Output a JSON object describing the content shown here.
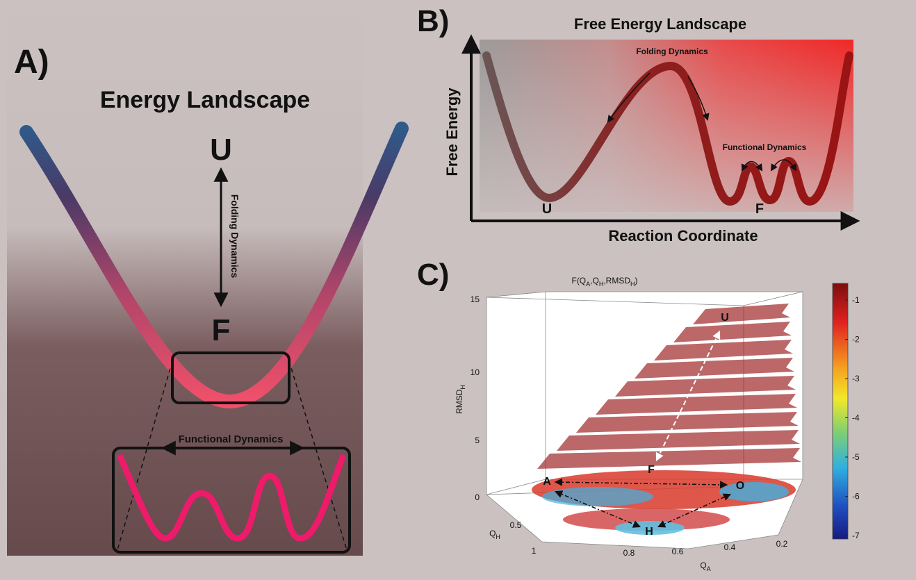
{
  "panel_a": {
    "label": "A)",
    "title": "Energy Landscape",
    "unfolded": "U",
    "folded": "F",
    "arrow_label": "Folding Dynamics",
    "inset_label": "Functional Dynamics"
  },
  "panel_b": {
    "label": "B)",
    "title": "Free Energy Landscape",
    "y_axis": "Free Energy",
    "x_axis": "Reaction Coordinate",
    "folding_label": "Folding Dynamics",
    "functional_label": "Functional Dynamics",
    "unfolded": "U",
    "folded": "F"
  },
  "panel_c": {
    "label": "C)",
    "title": [
      "F(Q",
      "A",
      ",Q",
      "H",
      ",RMSD",
      "H",
      ")"
    ],
    "z_axis": {
      "text": "RMSD",
      "subscript": "H"
    },
    "y_axis": {
      "text": "Q",
      "subscript": "H"
    },
    "x_axis": {
      "text": "Q",
      "subscript": "A"
    },
    "z_ticks": [
      15,
      10,
      5,
      0
    ],
    "y_ticks": [
      0.5,
      1
    ],
    "x_ticks": [
      0.8,
      0.6,
      0.4,
      0.2
    ],
    "colorbar_ticks": [
      -1,
      -2,
      -3,
      -4,
      -5,
      -6,
      -7
    ],
    "points": [
      "U",
      "F",
      "A",
      "O",
      "H"
    ]
  }
}
